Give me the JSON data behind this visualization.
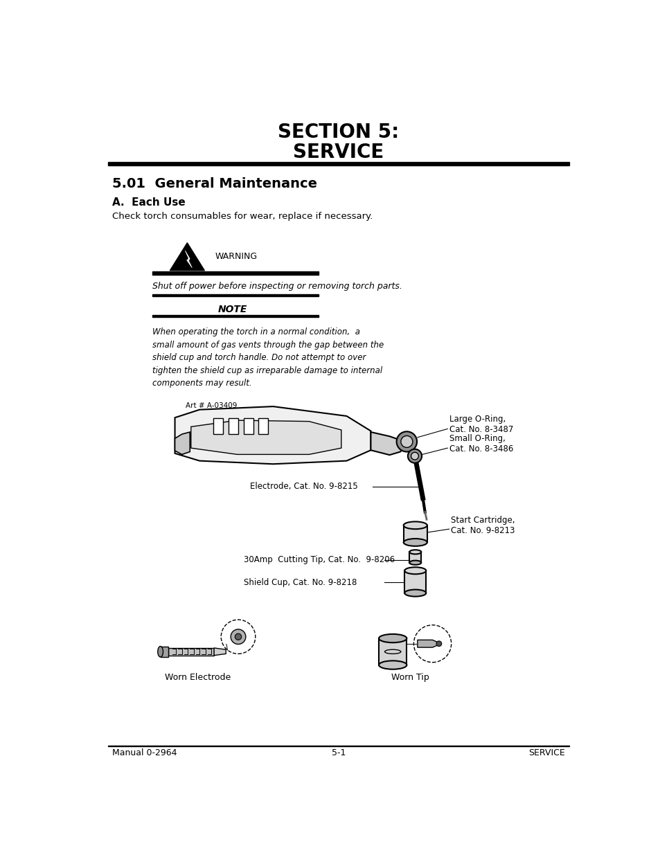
{
  "bg_color": "#ffffff",
  "title_line1": "SECTION 5:",
  "title_line2": "SERVICE",
  "section_heading": "5.01  General Maintenance",
  "subheading_a": "A.  Each Use",
  "body_text1": "Check torch consumables for wear, replace if necessary.",
  "warning_label": "WARNING",
  "warning_text": "Shut off power before inspecting or removing torch parts.",
  "note_label": "NOTE",
  "note_text": "When operating the torch in a normal condition,  a\nsmall amount of gas vents through the gap between the\nshield cup and torch handle. Do not attempt to over\ntighten the shield cup as irreparable damage to internal\ncomponents may result.",
  "art_label": "Art # A-03409",
  "labels": [
    "Large O-Ring,\nCat. No. 8-3487",
    "Small O-Ring,\nCat. No. 8-3486",
    "Electrode, Cat. No. 9-8215",
    "Start Cartridge,\nCat. No. 9-8213",
    "30Amp  Cutting Tip, Cat. No.  9-8206",
    "Shield Cup, Cat. No. 9-8218"
  ],
  "worn_electrode_label": "Worn Electrode",
  "worn_tip_label": "Worn Tip",
  "footer_left": "Manual 0-2964",
  "footer_center": "5-1",
  "footer_right": "SERVICE"
}
